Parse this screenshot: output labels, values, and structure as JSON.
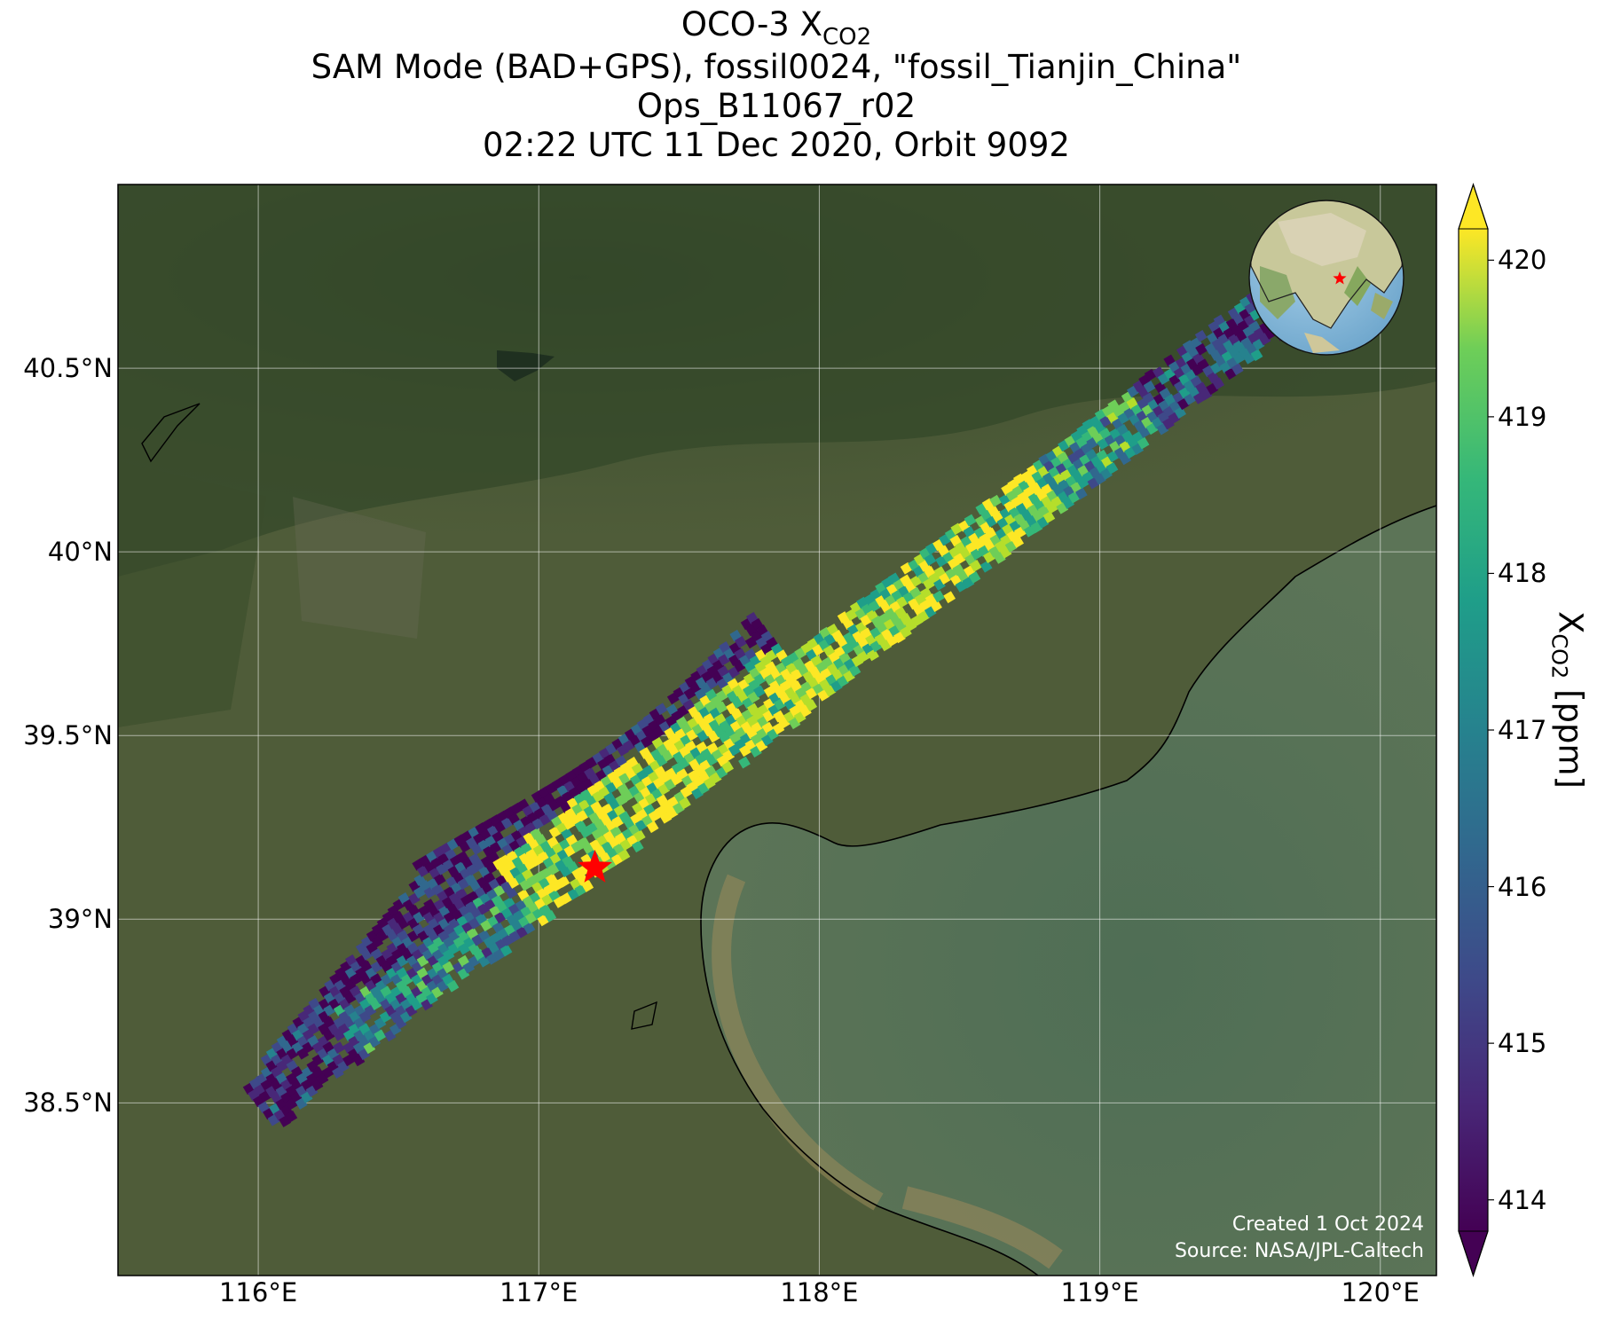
{
  "title": {
    "line1_main": "OCO-3 X",
    "line1_sub": "CO2",
    "line2": "SAM Mode (BAD+GPS), fossil0024, \"fossil_Tianjin_China\"",
    "line3": "Ops_B11067_r02",
    "line4": "02:22 UTC 11 Dec 2020, Orbit 9092"
  },
  "axes": {
    "lon_ticks": [
      "116°E",
      "117°E",
      "118°E",
      "119°E",
      "120°E"
    ],
    "lat_ticks": [
      "40.5°N",
      "40°N",
      "39.5°N",
      "39°N",
      "38.5°N"
    ],
    "lon_values": [
      116,
      117,
      118,
      119,
      120
    ],
    "lat_values": [
      40.5,
      40,
      39.5,
      39,
      38.5
    ],
    "lon_range": [
      115.5,
      120.2
    ],
    "lat_range": [
      38.03,
      41.0
    ],
    "grid": true
  },
  "colorbar": {
    "ticks": [
      "414",
      "415",
      "416",
      "417",
      "418",
      "419",
      "420"
    ],
    "values": [
      414,
      415,
      416,
      417,
      418,
      419,
      420
    ],
    "range": [
      413.8,
      420.2
    ],
    "colormap": "viridis",
    "extend": "both",
    "label_main": "X",
    "label_sub": "CO2",
    "label_unit": " [ppm]"
  },
  "target": {
    "lon": 117.2,
    "lat": 39.14,
    "marker": "red-star",
    "color": "#ff0000"
  },
  "inset_globe": {
    "marker": "red-star"
  },
  "credits": {
    "created": "Created 1 Oct 2024",
    "source": "Source: NASA/JPL-Caltech"
  },
  "colors": {
    "land": "#4a5a34",
    "mountain": "#2f4322",
    "sea": "#4e6b50",
    "coast_mud": "#8a7f55"
  }
}
